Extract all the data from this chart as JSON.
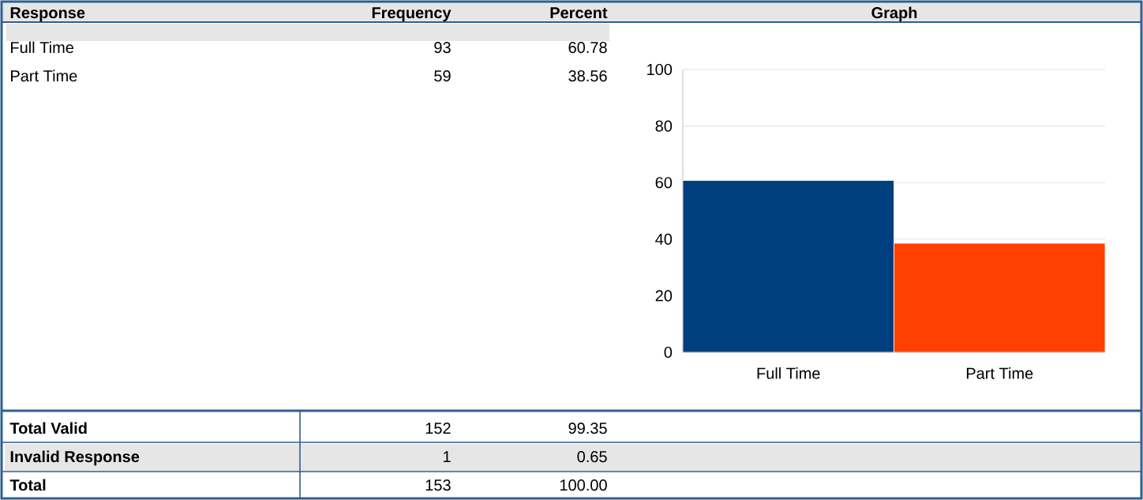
{
  "chart_data": {
    "type": "bar",
    "title": "Graph",
    "categories": [
      "Full Time",
      "Part Time"
    ],
    "values": [
      60.78,
      38.56
    ],
    "colors": [
      "#003f7f",
      "#ff4000"
    ],
    "ylim": [
      0,
      100
    ],
    "yticks": [
      0,
      20,
      40,
      60,
      80,
      100
    ],
    "grid": "y",
    "annotations": [
      "Response",
      "Frequency",
      "Percent",
      "93",
      "60.78",
      "59",
      "38.56",
      "Total Valid",
      "152",
      "99.35",
      "Invalid Response",
      "1",
      "0.65",
      "Total",
      "153",
      "100.00"
    ]
  }
}
